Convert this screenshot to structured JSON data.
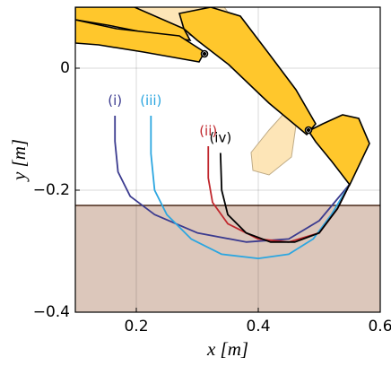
{
  "chart_data": {
    "type": "line",
    "xlabel": "x [m]",
    "ylabel": "y [m]",
    "xlim": [
      0.1,
      0.6
    ],
    "xticks": [
      0.2,
      0.4,
      0.6
    ],
    "ylim": [
      -0.4,
      0.1
    ],
    "yticks": [
      {
        "value": -0.4,
        "label": "−0.4"
      },
      {
        "value": -0.2,
        "label": "−0.2"
      },
      0
    ],
    "grid": true,
    "ground": {
      "ylim": [
        -0.4,
        -0.225
      ],
      "color": "#dcc7bb"
    },
    "series": [
      {
        "name": "(i)",
        "color": "#3b3b8f",
        "x": [
          0.165,
          0.165,
          0.17,
          0.19,
          0.23,
          0.3,
          0.38,
          0.45,
          0.5,
          0.55
        ],
        "values": [
          -0.078,
          -0.12,
          -0.17,
          -0.21,
          -0.24,
          -0.27,
          -0.285,
          -0.28,
          -0.25,
          -0.19
        ]
      },
      {
        "name": "(iii)",
        "color": "#2ca6e0",
        "x": [
          0.224,
          0.224,
          0.23,
          0.25,
          0.29,
          0.34,
          0.4,
          0.45,
          0.49,
          0.52,
          0.55
        ],
        "values": [
          -0.078,
          -0.14,
          -0.2,
          -0.24,
          -0.28,
          -0.305,
          -0.312,
          -0.305,
          -0.28,
          -0.24,
          -0.19
        ]
      },
      {
        "name": "(ii)",
        "color": "#c0272d",
        "x": [
          0.318,
          0.318,
          0.325,
          0.35,
          0.4,
          0.45,
          0.5,
          0.53,
          0.55
        ],
        "values": [
          -0.128,
          -0.18,
          -0.22,
          -0.255,
          -0.28,
          -0.285,
          -0.27,
          -0.23,
          -0.19
        ]
      },
      {
        "name": "(iv)",
        "color": "#000000",
        "x": [
          0.338,
          0.34,
          0.35,
          0.38,
          0.42,
          0.46,
          0.5,
          0.53,
          0.55
        ],
        "values": [
          -0.139,
          -0.2,
          -0.24,
          -0.27,
          -0.285,
          -0.285,
          -0.27,
          -0.23,
          -0.19
        ]
      }
    ]
  }
}
